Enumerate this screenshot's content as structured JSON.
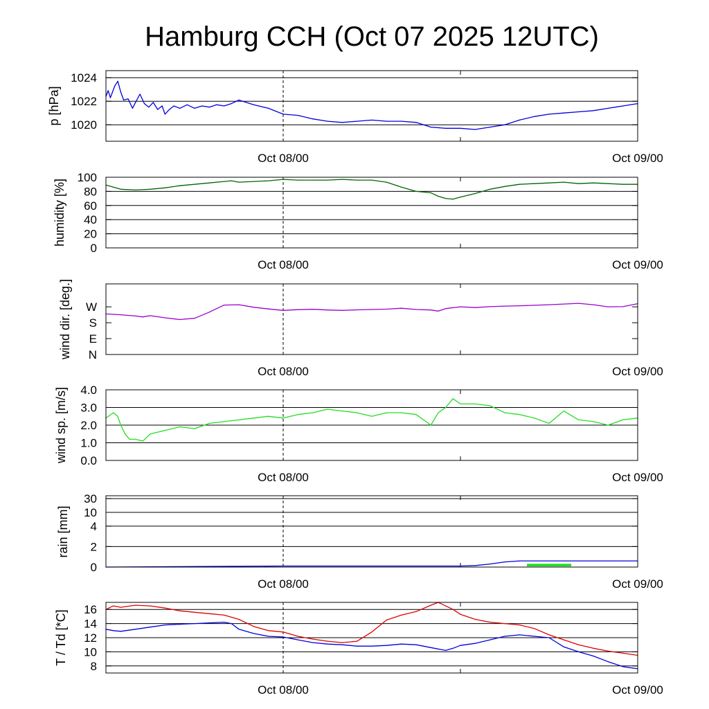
{
  "title": "Hamburg CCH (Oct 07 2025 12UTC)",
  "x_tick_labels": [
    "Oct 08/00",
    "Oct 09/00"
  ],
  "chart_data": [
    {
      "type": "line",
      "id": "pressure",
      "ylabel": "p [hPa]",
      "xlabel": "",
      "x_range_hours": [
        0,
        36
      ],
      "x_ticks_hours": [
        12,
        36
      ],
      "ylim": [
        1018.6,
        1024.6
      ],
      "yticks": [
        1020,
        1022,
        1024
      ],
      "ytick_labels": [
        "1020",
        "1022",
        "1024"
      ],
      "series": [
        {
          "name": "pressure",
          "color": "#0000dd",
          "x": [
            0,
            0.15,
            0.3,
            0.45,
            0.6,
            0.8,
            1.0,
            1.2,
            1.5,
            1.8,
            2.0,
            2.3,
            2.6,
            2.9,
            3.2,
            3.5,
            3.8,
            4.0,
            4.3,
            4.6,
            5.0,
            5.5,
            6.0,
            6.5,
            7.0,
            7.5,
            8.0,
            8.5,
            9.0,
            10,
            11,
            12,
            13,
            14,
            15,
            16,
            17,
            18,
            19,
            20,
            21,
            22,
            23,
            24,
            25,
            26,
            27,
            28,
            29,
            30,
            31,
            32,
            33,
            34,
            35,
            36
          ],
          "y": [
            1022.4,
            1022.9,
            1022.3,
            1022.8,
            1023.3,
            1023.7,
            1022.8,
            1022.1,
            1022.2,
            1021.4,
            1021.9,
            1022.6,
            1021.8,
            1021.5,
            1021.9,
            1021.3,
            1021.6,
            1020.9,
            1021.3,
            1021.6,
            1021.4,
            1021.7,
            1021.4,
            1021.6,
            1021.5,
            1021.7,
            1021.6,
            1021.8,
            1022.1,
            1021.7,
            1021.4,
            1020.9,
            1020.8,
            1020.5,
            1020.3,
            1020.2,
            1020.3,
            1020.4,
            1020.3,
            1020.3,
            1020.2,
            1019.8,
            1019.7,
            1019.7,
            1019.6,
            1019.8,
            1020.0,
            1020.4,
            1020.7,
            1020.9,
            1021.0,
            1021.1,
            1021.2,
            1021.4,
            1021.6,
            1021.8
          ]
        }
      ]
    },
    {
      "type": "line",
      "id": "humidity",
      "ylabel": "humidity [%]",
      "xlabel": "",
      "x_range_hours": [
        0,
        36
      ],
      "x_ticks_hours": [
        12,
        36
      ],
      "ylim": [
        0,
        100
      ],
      "yticks": [
        0,
        20,
        40,
        60,
        80,
        100
      ],
      "ytick_labels": [
        "0",
        "20",
        "40",
        "60",
        "80",
        "100"
      ],
      "series": [
        {
          "name": "humidity",
          "color": "#006400",
          "x": [
            0,
            0.5,
            1,
            2,
            3,
            4,
            5,
            6,
            7,
            8,
            8.5,
            9,
            10,
            11,
            12,
            13,
            14,
            15,
            16,
            17,
            18,
            19,
            20,
            21,
            22,
            22.5,
            23,
            23.5,
            24,
            25,
            26,
            27,
            28,
            29,
            30,
            31,
            32,
            33,
            34,
            35,
            36
          ],
          "y": [
            89,
            86,
            83,
            82,
            83,
            85,
            88,
            90,
            92,
            94,
            95,
            93,
            94,
            95,
            97,
            96,
            96,
            96,
            97,
            96,
            96,
            93,
            86,
            80,
            78,
            73,
            70,
            69,
            72,
            77,
            83,
            87,
            90,
            91,
            92,
            93,
            91,
            92,
            91,
            90,
            90
          ]
        }
      ]
    },
    {
      "type": "line",
      "id": "wind-direction",
      "ylabel": "wind dir. [deg.]",
      "xlabel": "",
      "x_range_hours": [
        0,
        36
      ],
      "x_ticks_hours": [
        12,
        36
      ],
      "ylim": [
        0,
        400
      ],
      "yticks": [
        0,
        90,
        180,
        270
      ],
      "ytick_labels": [
        "N",
        "E",
        "S",
        "W"
      ],
      "series": [
        {
          "name": "wind direction",
          "color": "#9900cc",
          "x": [
            0,
            1,
            2,
            2.5,
            3,
            4,
            5,
            6,
            7,
            8,
            9,
            10,
            11,
            12,
            13,
            14,
            15,
            16,
            17,
            18,
            19,
            20,
            21,
            22,
            22.5,
            23,
            24,
            25,
            26,
            27,
            28,
            29,
            30,
            31,
            32,
            33,
            34,
            35,
            36
          ],
          "y": [
            230,
            225,
            218,
            213,
            220,
            208,
            198,
            205,
            240,
            280,
            282,
            268,
            258,
            250,
            254,
            256,
            252,
            250,
            253,
            255,
            257,
            262,
            255,
            252,
            246,
            260,
            270,
            266,
            271,
            274,
            276,
            279,
            282,
            286,
            290,
            282,
            270,
            271,
            288
          ]
        }
      ]
    },
    {
      "type": "line",
      "id": "wind-speed",
      "ylabel": "wind sp. [m/s]",
      "xlabel": "",
      "x_range_hours": [
        0,
        36
      ],
      "x_ticks_hours": [
        12,
        36
      ],
      "ylim": [
        0,
        4
      ],
      "yticks": [
        0,
        1,
        2,
        3,
        4
      ],
      "ytick_labels": [
        "0.0",
        "1.0",
        "2.0",
        "3.0",
        "4.0"
      ],
      "series": [
        {
          "name": "wind speed",
          "color": "#22dd22",
          "x": [
            0,
            0.5,
            0.8,
            1.0,
            1.3,
            1.6,
            2.0,
            2.5,
            3.0,
            4.0,
            5.0,
            6.0,
            7.0,
            8.0,
            9.0,
            10,
            11,
            12,
            13,
            14,
            15,
            16,
            17,
            18,
            19,
            20,
            21,
            22,
            22.5,
            23,
            23.5,
            24,
            25,
            26,
            27,
            28,
            29,
            30,
            31,
            32,
            33,
            34,
            35,
            36
          ],
          "y": [
            2.4,
            2.7,
            2.5,
            2.0,
            1.5,
            1.2,
            1.2,
            1.1,
            1.5,
            1.7,
            1.9,
            1.8,
            2.1,
            2.2,
            2.3,
            2.4,
            2.5,
            2.4,
            2.6,
            2.7,
            2.9,
            2.8,
            2.7,
            2.5,
            2.7,
            2.7,
            2.6,
            2.0,
            2.7,
            3.0,
            3.5,
            3.2,
            3.2,
            3.1,
            2.7,
            2.6,
            2.4,
            2.1,
            2.8,
            2.3,
            2.2,
            2.0,
            2.3,
            2.4
          ]
        }
      ]
    },
    {
      "type": "line",
      "id": "rain",
      "ylabel": "rain [mm]",
      "xlabel": "",
      "x_range_hours": [
        0,
        36
      ],
      "x_ticks_hours": [
        12,
        36
      ],
      "ylim": [
        0,
        30
      ],
      "yticks": [
        0,
        2,
        4,
        10,
        30
      ],
      "ytick_labels": [
        "0",
        "2",
        "4",
        "10",
        "30"
      ],
      "series": [
        {
          "name": "accumulated rain",
          "color": "#0000dd",
          "x": [
            0,
            12,
            24,
            25,
            26,
            27,
            28,
            29,
            30,
            31,
            32,
            33,
            34,
            35,
            36
          ],
          "y": [
            0,
            0.1,
            0.1,
            0.15,
            0.3,
            0.5,
            0.6,
            0.6,
            0.6,
            0.6,
            0.6,
            0.6,
            0.6,
            0.6,
            0.6
          ]
        },
        {
          "name": "rain intensity",
          "color": "#22dd22",
          "style": "bar",
          "x": [
            28.5,
            31.5
          ],
          "y": [
            0.18,
            0.18
          ]
        }
      ]
    },
    {
      "type": "line",
      "id": "temperature",
      "ylabel": "T / Td [*C]",
      "xlabel": "",
      "x_range_hours": [
        0,
        36
      ],
      "x_ticks_hours": [
        12,
        36
      ],
      "ylim": [
        7,
        17
      ],
      "yticks": [
        8,
        10,
        12,
        14,
        16
      ],
      "ytick_labels": [
        "8",
        "10",
        "12",
        "14",
        "16"
      ],
      "series": [
        {
          "name": "T",
          "color": "#dd0000",
          "x": [
            0,
            0.5,
            1,
            2,
            3,
            4,
            5,
            6,
            7,
            8,
            9,
            10,
            11,
            12,
            13,
            14,
            15,
            16,
            17,
            18,
            19,
            20,
            21,
            22,
            22.5,
            23,
            23.5,
            24,
            25,
            26,
            27,
            28,
            29,
            30,
            31,
            32,
            33,
            34,
            35,
            36
          ],
          "y": [
            16.0,
            16.5,
            16.3,
            16.6,
            16.5,
            16.2,
            15.8,
            15.6,
            15.4,
            15.2,
            14.6,
            13.6,
            13.0,
            12.8,
            12.2,
            11.8,
            11.5,
            11.3,
            11.5,
            12.8,
            14.5,
            15.2,
            15.7,
            16.6,
            17.0,
            16.5,
            16.0,
            15.3,
            14.6,
            14.2,
            14.0,
            13.8,
            13.3,
            12.4,
            11.7,
            11.0,
            10.5,
            10.1,
            9.8,
            9.5
          ]
        },
        {
          "name": "Td",
          "color": "#0000dd",
          "x": [
            0,
            0.5,
            1,
            2,
            3,
            4,
            5,
            6,
            7,
            8,
            8.5,
            9,
            10,
            11,
            12,
            13,
            14,
            15,
            16,
            17,
            18,
            19,
            20,
            21,
            22,
            23,
            23.5,
            24,
            25,
            26,
            27,
            28,
            29,
            30,
            31,
            32,
            33,
            34,
            35,
            36
          ],
          "y": [
            13.2,
            13.0,
            12.9,
            13.2,
            13.5,
            13.8,
            13.9,
            14.0,
            14.1,
            14.2,
            14.0,
            13.2,
            12.6,
            12.2,
            12.1,
            11.7,
            11.3,
            11.1,
            11.0,
            10.8,
            10.8,
            10.9,
            11.1,
            11.0,
            10.6,
            10.2,
            10.5,
            10.9,
            11.2,
            11.7,
            12.2,
            12.4,
            12.2,
            12.0,
            10.7,
            10.0,
            9.4,
            8.6,
            7.9,
            7.6
          ]
        }
      ]
    }
  ]
}
